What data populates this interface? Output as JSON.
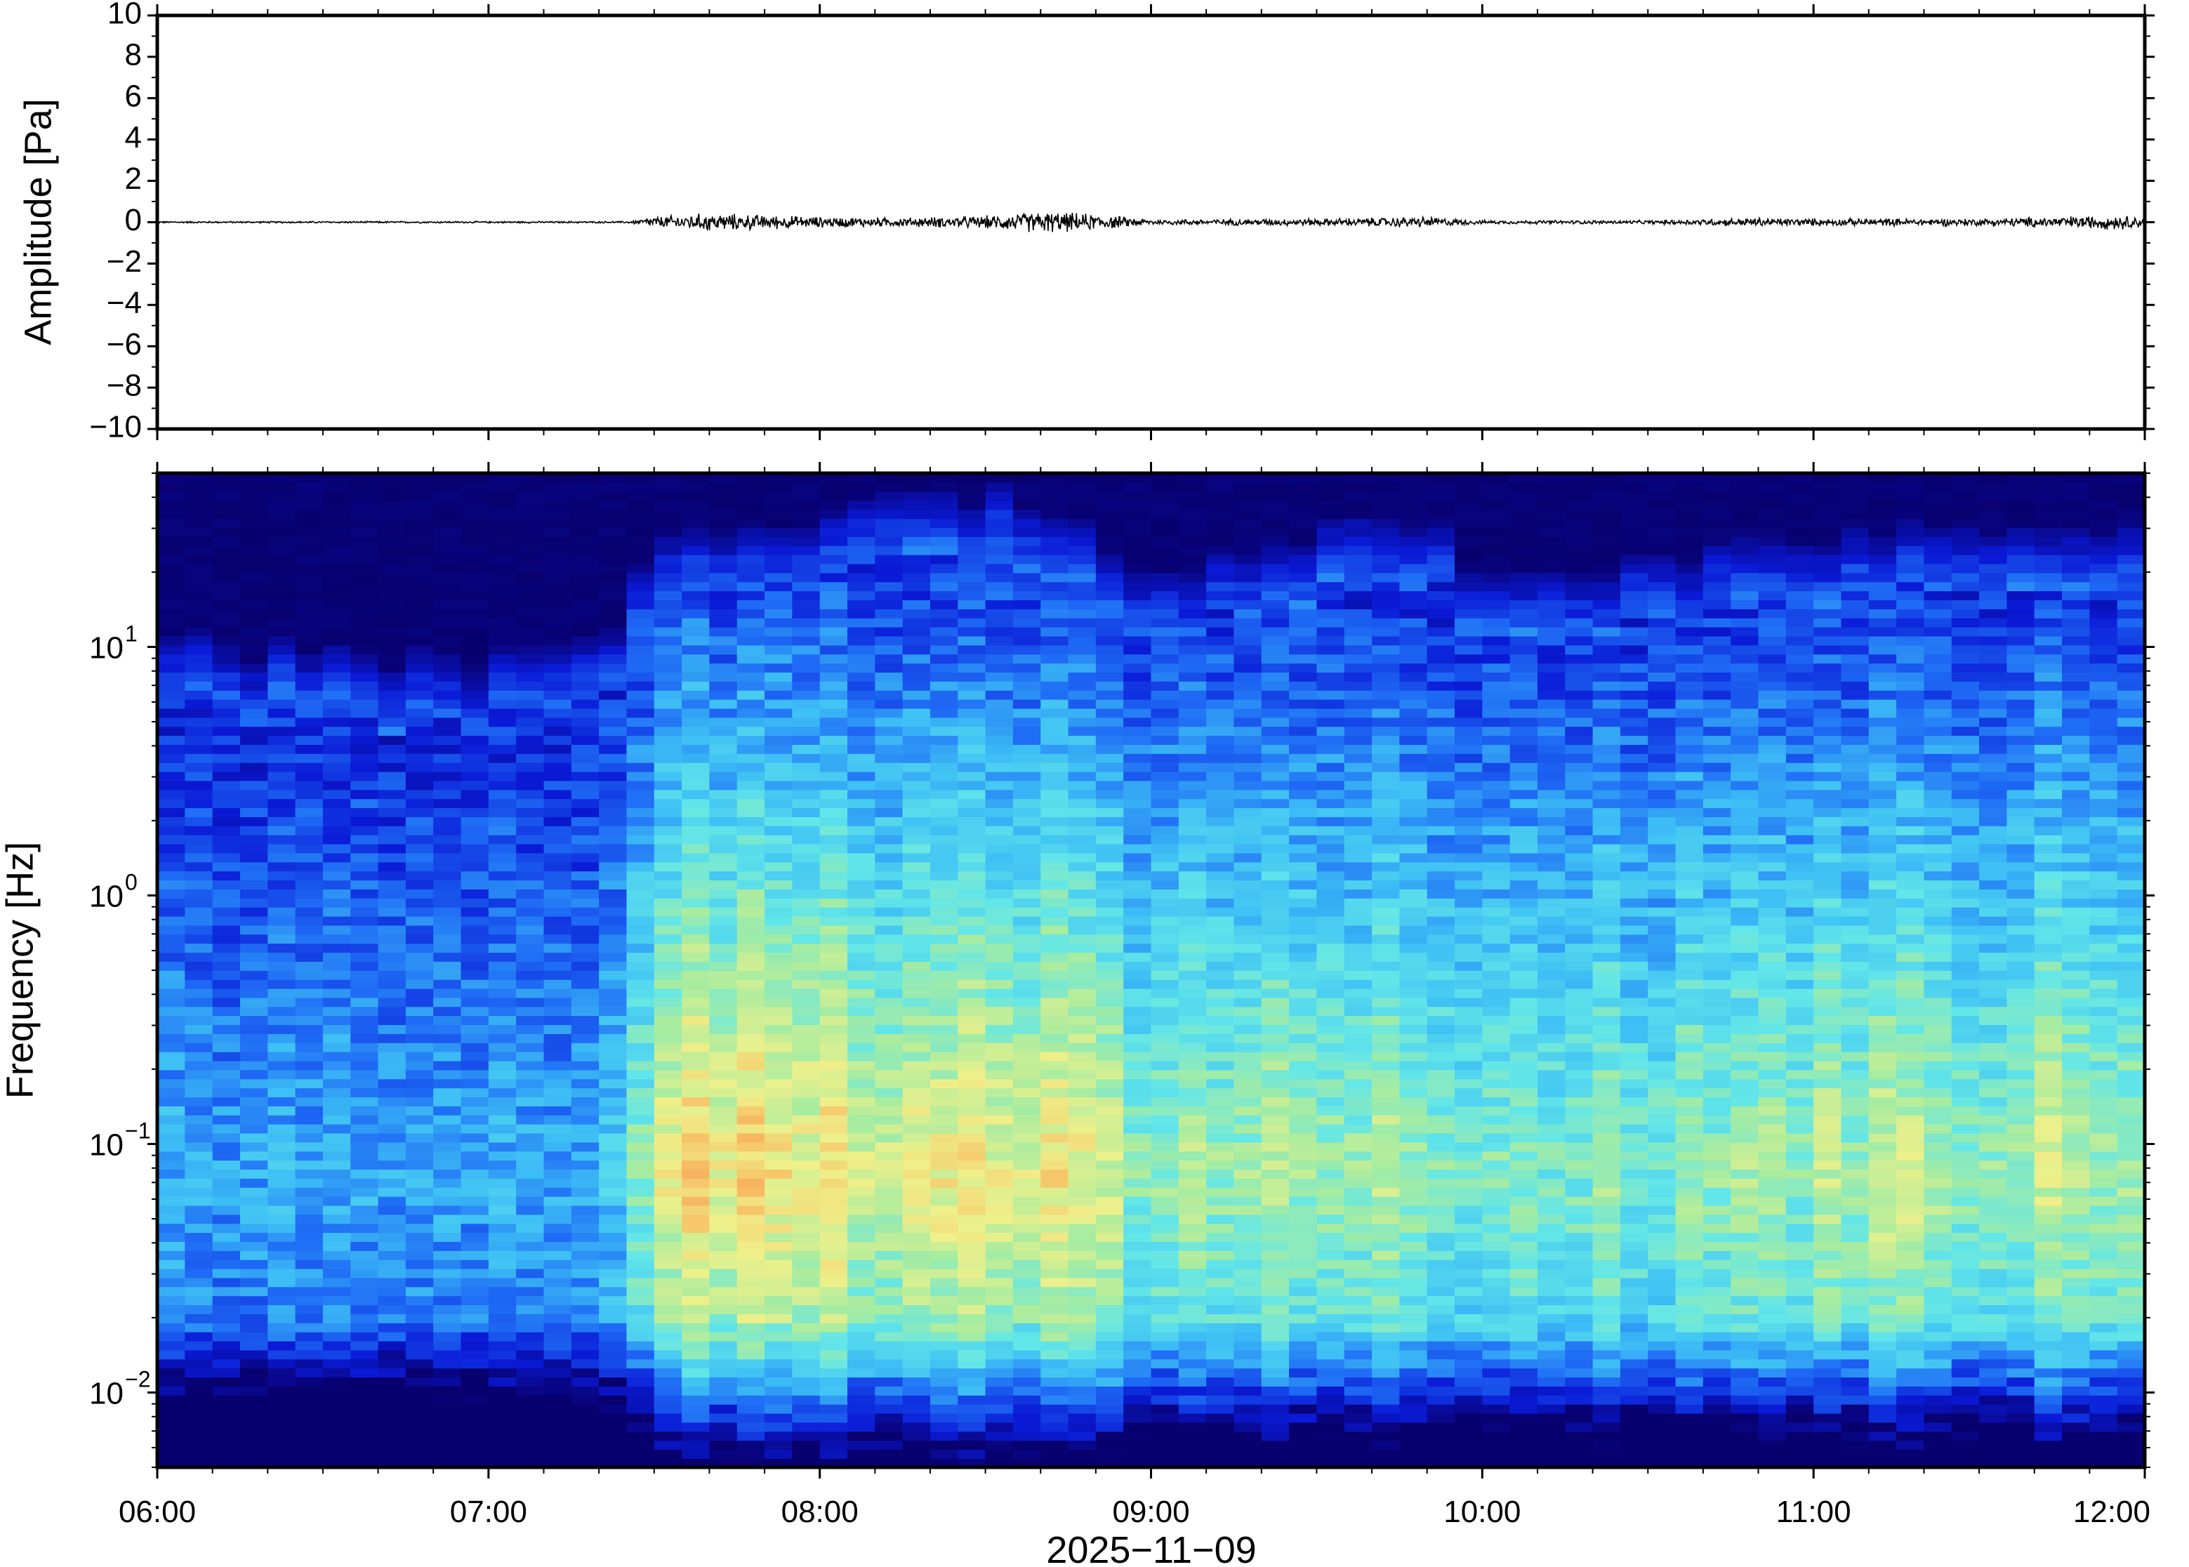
{
  "chart_data": [
    {
      "type": "line",
      "ylabel": "Amplitude [Pa]",
      "ylim": [
        -10,
        10
      ],
      "yticks": [
        10,
        8,
        6,
        4,
        2,
        0,
        -2,
        -4,
        -6,
        -8,
        -10
      ],
      "ytick_labels": [
        "10",
        "8",
        "6",
        "4",
        "2",
        "0",
        "−2",
        "−4",
        "−6",
        "−8",
        "−10"
      ],
      "xlim": [
        "06:00",
        "12:00"
      ],
      "series": [
        {
          "x": [
            "06:00",
            "06:30",
            "07:00",
            "07:25",
            "07:30",
            "07:40",
            "07:50",
            "08:00",
            "08:15",
            "08:30",
            "08:40",
            "08:50",
            "09:00",
            "09:30",
            "09:50",
            "10:00",
            "10:30",
            "10:50",
            "11:00",
            "11:30",
            "11:55",
            "12:00"
          ],
          "envelope": [
            0.05,
            0.05,
            0.05,
            0.05,
            0.3,
            0.5,
            0.4,
            0.3,
            0.25,
            0.35,
            0.6,
            0.45,
            0.15,
            0.2,
            0.3,
            0.1,
            0.1,
            0.25,
            0.2,
            0.2,
            0.4,
            0.3
          ],
          "color": "#000000"
        }
      ]
    },
    {
      "type": "heatmap",
      "ylabel": "Frequency [Hz]",
      "yscale": "log",
      "ylim": [
        0.005,
        50
      ],
      "yticks": [
        0.01,
        0.1,
        1,
        10
      ],
      "ytick_labels": [
        {
          "base": "10",
          "exp": "−2"
        },
        {
          "base": "10",
          "exp": "−1"
        },
        {
          "base": "10",
          "exp": "0"
        },
        {
          "base": "10",
          "exp": "1"
        }
      ],
      "xlabel": "2025−11−09",
      "xlim": [
        "06:00",
        "12:00"
      ],
      "xticks": [
        "06:00",
        "07:00",
        "08:00",
        "09:00",
        "10:00",
        "11:00",
        "12:00"
      ],
      "colormap": [
        "#08006e",
        "#0a1ad6",
        "#1f6cf5",
        "#3ec0f5",
        "#62e6e8",
        "#a8eca0",
        "#eef08a",
        "#f7c065",
        "#f49050"
      ],
      "activity_profile": {
        "time": [
          "06:00",
          "07:00",
          "07:25",
          "07:30",
          "08:00",
          "08:20",
          "08:40",
          "09:00",
          "09:30",
          "09:45",
          "10:00",
          "10:20",
          "10:40",
          "11:00",
          "11:30",
          "12:00"
        ],
        "cutoff_hz": [
          6,
          5,
          6,
          18,
          20,
          22,
          24,
          10,
          16,
          22,
          10,
          12,
          14,
          16,
          16,
          20
        ],
        "intensity": [
          0.35,
          0.35,
          0.38,
          0.82,
          0.8,
          0.72,
          0.78,
          0.6,
          0.66,
          0.62,
          0.55,
          0.58,
          0.6,
          0.65,
          0.64,
          0.68
        ]
      }
    }
  ]
}
